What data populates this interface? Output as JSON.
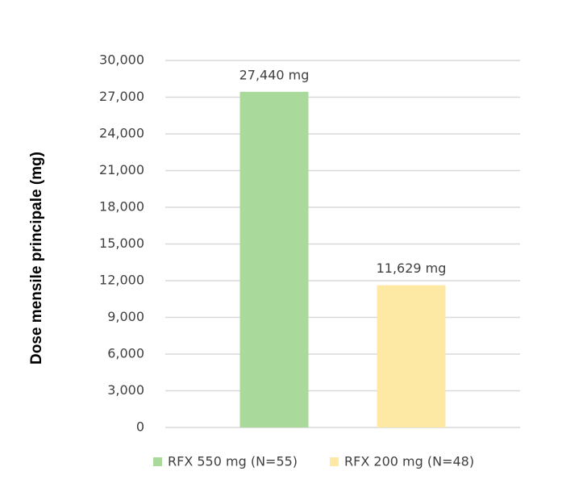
{
  "chart_data": {
    "type": "bar",
    "ylabel": "Dose mensile principale (mg)",
    "categories": [
      null
    ],
    "series": [
      {
        "name": "RFX 550 mg (N=55)",
        "color": "#a9d99b",
        "values": [
          27440
        ],
        "value_labels": [
          "27,440 mg"
        ]
      },
      {
        "name": "RFX 200 mg (N=48)",
        "color": "#fde9a3",
        "values": [
          11629
        ],
        "value_labels": [
          "11,629 mg"
        ]
      }
    ],
    "ylim": [
      0,
      30000
    ],
    "yticks": [
      0,
      {
        "value": 3000,
        "label": "3,000"
      },
      {
        "value": 6000,
        "label": "6,000"
      },
      {
        "value": 9000,
        "label": "9,000"
      },
      {
        "value": 12000,
        "label": "12,000"
      },
      {
        "value": 15000,
        "label": "15,000"
      },
      {
        "value": 18000,
        "label": "18,000"
      },
      {
        "value": 21000,
        "label": "21,000"
      },
      {
        "value": 24000,
        "label": "24,000"
      },
      {
        "value": 27000,
        "label": "27,000"
      },
      {
        "value": 30000,
        "label": "30,000"
      }
    ],
    "grid": true,
    "legend": "bottom"
  }
}
